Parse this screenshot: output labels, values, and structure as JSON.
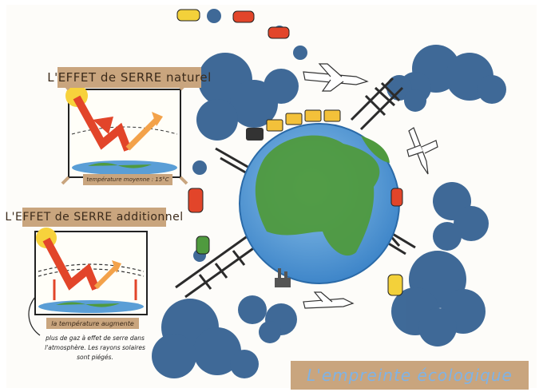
{
  "panel_natural": {
    "title": "L'EFFET de SERRE naturel",
    "caption": "température moyenne : 15°C"
  },
  "panel_additional": {
    "title": "L'EFFET de SERRE additionnel",
    "caption": "la température augmente",
    "note": "plus de gaz à effet de serre dans l'atmosphère. Les rayons solaires sont piégés."
  },
  "footer": {
    "label": "L'empreinte écologique"
  },
  "colors": {
    "label_bg": "#c9a57e",
    "sun": "#f7d23c",
    "arrow_red": "#e2452a",
    "arrow_orange": "#f3a24a",
    "cloud": "#2f5d8f",
    "ocean": "#5a9ed6",
    "land": "#4f9a3e",
    "pylon": "#2b2b2b"
  },
  "icons": [
    "sun-icon",
    "airplane-icon",
    "car-icon",
    "train-icon",
    "factory-icon",
    "pylon-icon",
    "cloud-icon"
  ]
}
